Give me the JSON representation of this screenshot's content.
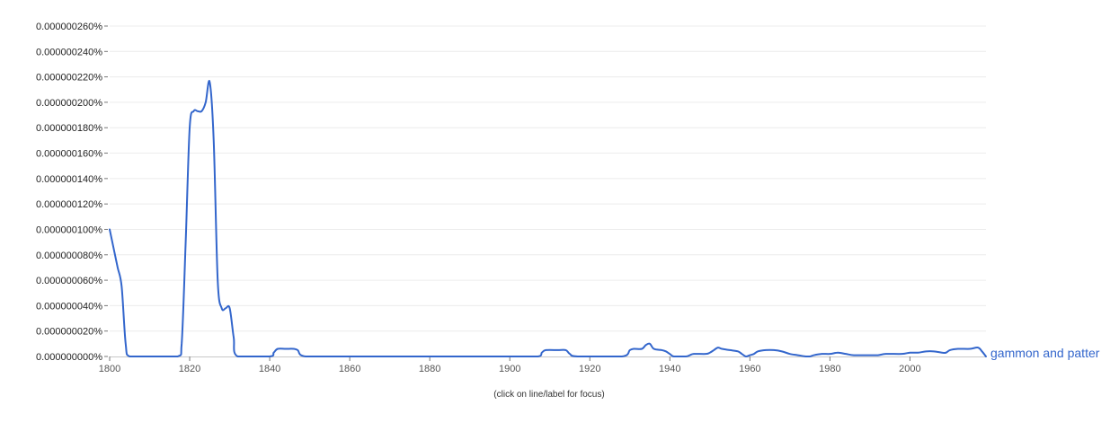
{
  "chart_data": {
    "type": "line",
    "title": "",
    "xlabel": "",
    "ylabel": "",
    "xlim": [
      1800,
      2019
    ],
    "ylim": [
      0,
      2.6e-07
    ],
    "x_ticks": [
      "1800",
      "1820",
      "1840",
      "1860",
      "1880",
      "1900",
      "1920",
      "1940",
      "1960",
      "1980",
      "2000"
    ],
    "y_ticks": [
      "0.000000000%",
      "0.000000020%",
      "0.000000040%",
      "0.000000060%",
      "0.000000080%",
      "0.000000100%",
      "0.000000120%",
      "0.000000140%",
      "0.000000160%",
      "0.000000180%",
      "0.000000200%",
      "0.000000220%",
      "0.000000240%",
      "0.000000260%"
    ],
    "grid": true,
    "legend": "end-of-line label",
    "series": [
      {
        "name": "gammon and patter",
        "color": "#3366cc",
        "points": [
          [
            1800,
            1e-07
          ],
          [
            1801,
            8.5e-08
          ],
          [
            1802,
            7e-08
          ],
          [
            1803,
            5.5e-08
          ],
          [
            1804,
            1e-08
          ],
          [
            1805,
            0.0
          ],
          [
            1810,
            0.0
          ],
          [
            1817,
            0.0
          ],
          [
            1818,
            1e-08
          ],
          [
            1819,
            9e-08
          ],
          [
            1820,
            1.8e-07
          ],
          [
            1821,
            1.93e-07
          ],
          [
            1822,
            1.93e-07
          ],
          [
            1823,
            1.93e-07
          ],
          [
            1824,
            2e-07
          ],
          [
            1825,
            2.16e-07
          ],
          [
            1826,
            1.7e-07
          ],
          [
            1827,
            6e-08
          ],
          [
            1828,
            3.8e-08
          ],
          [
            1829,
            3.8e-08
          ],
          [
            1830,
            3.8e-08
          ],
          [
            1831,
            1.5e-08
          ],
          [
            1832,
            0.0
          ],
          [
            1840,
            0.0
          ],
          [
            1841,
            3e-09
          ],
          [
            1842,
            6e-09
          ],
          [
            1844,
            6e-09
          ],
          [
            1846,
            6e-09
          ],
          [
            1847,
            5e-09
          ],
          [
            1849,
            0.0
          ],
          [
            1860,
            0.0
          ],
          [
            1880,
            0.0
          ],
          [
            1900,
            0.0
          ],
          [
            1907,
            0.0
          ],
          [
            1908,
            3e-09
          ],
          [
            1909,
            5e-09
          ],
          [
            1912,
            5e-09
          ],
          [
            1914,
            5e-09
          ],
          [
            1915,
            2e-09
          ],
          [
            1917,
            0.0
          ],
          [
            1928,
            0.0
          ],
          [
            1930,
            5e-09
          ],
          [
            1931,
            6e-09
          ],
          [
            1933,
            6e-09
          ],
          [
            1934,
            9e-09
          ],
          [
            1935,
            1e-08
          ],
          [
            1936,
            6e-09
          ],
          [
            1938,
            5e-09
          ],
          [
            1939,
            4e-09
          ],
          [
            1940,
            2e-09
          ],
          [
            1941,
            0.0
          ],
          [
            1944,
            0.0
          ],
          [
            1945,
            1e-09
          ],
          [
            1946,
            2e-09
          ],
          [
            1949,
            2e-09
          ],
          [
            1950,
            3e-09
          ],
          [
            1951,
            5e-09
          ],
          [
            1952,
            7e-09
          ],
          [
            1953,
            6e-09
          ],
          [
            1955,
            5e-09
          ],
          [
            1957,
            4e-09
          ],
          [
            1958,
            2e-09
          ],
          [
            1959,
            0.0
          ],
          [
            1960,
            1e-09
          ],
          [
            1961,
            2e-09
          ],
          [
            1962,
            4e-09
          ],
          [
            1964,
            5e-09
          ],
          [
            1966,
            5e-09
          ],
          [
            1968,
            4e-09
          ],
          [
            1970,
            2e-09
          ],
          [
            1972,
            1e-09
          ],
          [
            1974,
            0.0
          ],
          [
            1975,
            0.0
          ],
          [
            1976,
            1e-09
          ],
          [
            1978,
            2e-09
          ],
          [
            1980,
            2e-09
          ],
          [
            1982,
            3e-09
          ],
          [
            1984,
            2e-09
          ],
          [
            1986,
            1e-09
          ],
          [
            1990,
            1e-09
          ],
          [
            1992,
            1e-09
          ],
          [
            1994,
            2e-09
          ],
          [
            1998,
            2e-09
          ],
          [
            2000,
            3e-09
          ],
          [
            2002,
            3e-09
          ],
          [
            2004,
            4e-09
          ],
          [
            2006,
            4e-09
          ],
          [
            2008,
            3e-09
          ],
          [
            2009,
            3e-09
          ],
          [
            2010,
            5e-09
          ],
          [
            2012,
            6e-09
          ],
          [
            2015,
            6e-09
          ],
          [
            2017,
            7e-09
          ],
          [
            2018,
            4e-09
          ],
          [
            2019,
            0.0
          ]
        ]
      }
    ]
  },
  "footnote": "(click on line/label for focus)"
}
